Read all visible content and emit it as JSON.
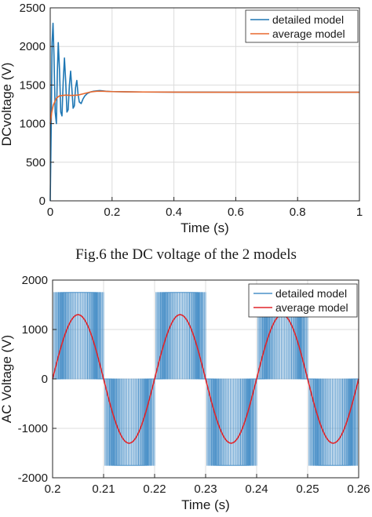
{
  "chart_data": [
    {
      "type": "line",
      "ylabel": "DCvoltage (V)",
      "xlabel": "Time (s)",
      "xlim": [
        0,
        1
      ],
      "ylim": [
        0,
        2500
      ],
      "xticks": [
        0,
        0.2,
        0.4,
        0.6,
        0.8,
        1
      ],
      "xtick_labels": [
        "0",
        "0.2",
        "0.4",
        "0.6",
        "0.8",
        "1"
      ],
      "yticks": [
        0,
        500,
        1000,
        1500,
        2000,
        2500
      ],
      "ytick_labels": [
        "0",
        "500",
        "1000",
        "1500",
        "2000",
        "2500"
      ],
      "grid": true,
      "legend": "top-right",
      "series": [
        {
          "name": "detailed model",
          "color": "#1f77b4",
          "x": [
            0,
            0.003,
            0.006,
            0.009,
            0.012,
            0.016,
            0.02,
            0.023,
            0.026,
            0.03,
            0.034,
            0.038,
            0.042,
            0.046,
            0.05,
            0.054,
            0.058,
            0.062,
            0.066,
            0.07,
            0.074,
            0.078,
            0.082,
            0.086,
            0.09,
            0.094,
            0.1,
            0.106,
            0.112,
            0.12,
            0.13,
            0.14,
            0.15,
            0.16,
            0.17,
            0.18,
            0.2,
            0.25,
            0.3,
            0.4,
            0.5,
            0.6,
            0.7,
            0.8,
            0.9,
            1.0
          ],
          "values": [
            0,
            900,
            2050,
            2300,
            1900,
            1150,
            1000,
            1650,
            2050,
            1700,
            1150,
            1100,
            1550,
            1850,
            1550,
            1150,
            1180,
            1500,
            1680,
            1450,
            1200,
            1230,
            1470,
            1560,
            1380,
            1280,
            1260,
            1320,
            1360,
            1390,
            1410,
            1420,
            1425,
            1428,
            1425,
            1420,
            1415,
            1412,
            1410,
            1408,
            1408,
            1407,
            1407,
            1407,
            1407,
            1407
          ]
        },
        {
          "name": "average model",
          "color": "#e8692e",
          "x": [
            0,
            0.005,
            0.01,
            0.02,
            0.03,
            0.05,
            0.07,
            0.09,
            0.11,
            0.13,
            0.15,
            0.17,
            0.2,
            0.25,
            0.3,
            0.4,
            0.5,
            0.6,
            0.7,
            0.8,
            0.9,
            1.0
          ],
          "values": [
            1000,
            1150,
            1240,
            1330,
            1360,
            1370,
            1365,
            1370,
            1390,
            1410,
            1420,
            1420,
            1415,
            1412,
            1410,
            1408,
            1407,
            1407,
            1407,
            1407,
            1407,
            1407
          ]
        }
      ]
    },
    {
      "type": "line",
      "ylabel": "AC Voltage  (V)",
      "xlabel": "Time (s)",
      "xlim": [
        0.2,
        0.26
      ],
      "ylim": [
        -2000,
        2000
      ],
      "xticks": [
        0.2,
        0.21,
        0.22,
        0.23,
        0.24,
        0.25,
        0.26
      ],
      "xtick_labels": [
        "0.2",
        "0.21",
        "0.22",
        "0.23",
        "0.24",
        "0.25",
        "0.26"
      ],
      "yticks": [
        -2000,
        -1000,
        0,
        1000,
        2000
      ],
      "ytick_labels": [
        "-2000",
        "-1000",
        "0",
        "1000",
        "2000"
      ],
      "grid": true,
      "legend": "top-right",
      "series": [
        {
          "name": "detailed model",
          "color": "#4a90c8",
          "shape": "pwm",
          "amplitude": 1750,
          "fundamental_hz": 50,
          "switching_hz": 3500
        },
        {
          "name": "average model",
          "color": "#e0242a",
          "shape": "sine",
          "amplitude": 1300,
          "fundamental_hz": 50,
          "phase_start_s": 0.2
        }
      ]
    }
  ],
  "caption": "Fig.6 the DC voltage of the 2 models"
}
